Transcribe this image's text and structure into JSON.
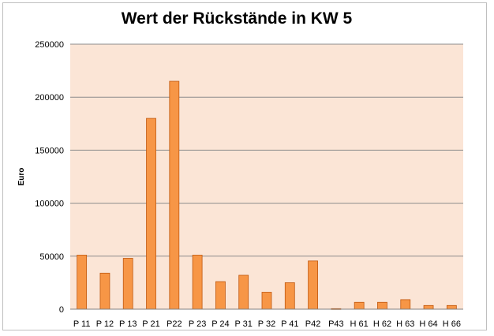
{
  "chart_data": {
    "type": "bar",
    "title": "Wert der Rückstände in KW 5",
    "xlabel": "",
    "ylabel": "Euro",
    "ylim": [
      0,
      250000
    ],
    "yticks": [
      "0",
      "50000",
      "100000",
      "150000",
      "200000",
      "250000"
    ],
    "grid": true,
    "legend": "none",
    "categories": [
      "P 11",
      "P 12",
      "P 13",
      "P 21",
      "P22",
      "P 23",
      "P 24",
      "P 31",
      "P 32",
      "P 41",
      "P42",
      "P43",
      "H 61",
      "H 62",
      "H 63",
      "H 64",
      "H 66"
    ],
    "values": [
      51000,
      34000,
      48000,
      180000,
      215000,
      51000,
      26000,
      32000,
      16000,
      25000,
      45500,
      500,
      6500,
      6500,
      9000,
      3500,
      3500
    ],
    "colors": {
      "bar_fill": "#f79646",
      "bar_stroke": "#c0580f",
      "plot_bg": "#fbe5d6",
      "grid": "#8c8c8c"
    }
  }
}
